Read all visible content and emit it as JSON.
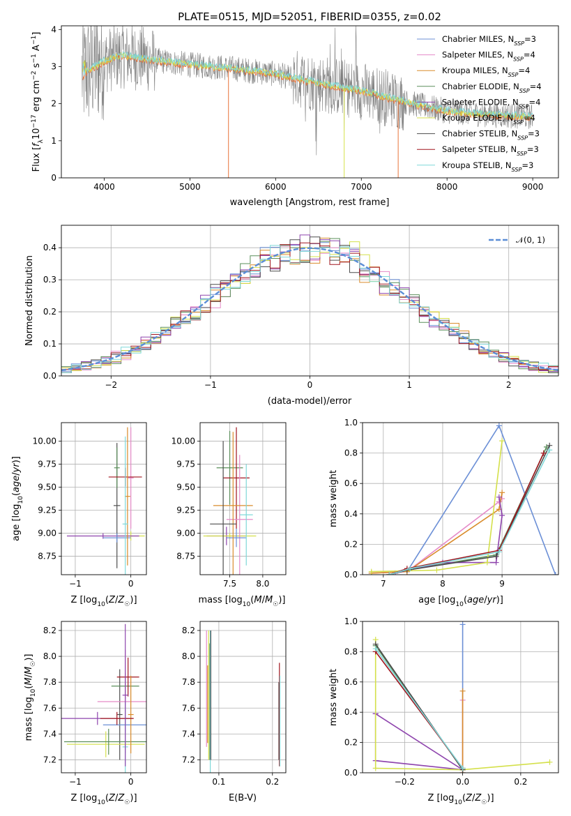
{
  "title": "PLATE=0515, MJD=52051, FIBERID=0355, z=0.02",
  "colors": {
    "data": "#808080",
    "models": [
      "#6b8fd6",
      "#e58ac8",
      "#d98b2b",
      "#5a8f5a",
      "#8e44ad",
      "#d4e04a",
      "#4d4d4d",
      "#a0151e",
      "#7fd8d8"
    ],
    "orange_model": "#e8733a",
    "normal": "#5b8ed6"
  },
  "legend": [
    {
      "name": "Chabrier MILES",
      "nssp": "3"
    },
    {
      "name": "Salpeter MILES",
      "nssp": "4"
    },
    {
      "name": "Kroupa MILES",
      "nssp": "4"
    },
    {
      "name": "Chabrier ELODIE",
      "nssp": "4"
    },
    {
      "name": "Salpeter ELODIE",
      "nssp": "4"
    },
    {
      "name": "Kroupa ELODIE",
      "nssp": "4"
    },
    {
      "name": "Chabrier STELIB",
      "nssp": "3"
    },
    {
      "name": "Salpeter STELIB",
      "nssp": "3"
    },
    {
      "name": "Kroupa STELIB",
      "nssp": "3"
    }
  ],
  "normal_label": "𝒩(0, 1)",
  "chart_data": [
    {
      "id": "spectrum",
      "type": "line",
      "xlabel": "wavelength [Angstrom, rest frame]",
      "ylabel": "Flux [f_λ10^-17 erg cm^-2 s^-1 A^-1]",
      "xlim": [
        3500,
        9300
      ],
      "ylim": [
        0,
        4.1
      ],
      "xticks": [
        4000,
        5000,
        6000,
        7000,
        8000,
        9000
      ],
      "yticks": [
        0,
        1,
        2,
        3,
        4
      ],
      "continuum_x": [
        3750,
        4000,
        4200,
        4500,
        5000,
        5500,
        6000,
        6500,
        7000,
        7500,
        8000,
        8500,
        9000
      ],
      "continuum_y": [
        2.8,
        3.15,
        3.3,
        3.2,
        3.05,
        2.95,
        2.8,
        2.55,
        2.35,
        2.05,
        1.8,
        1.7,
        1.65
      ],
      "grid": false
    },
    {
      "id": "residuals",
      "type": "line",
      "xlabel": "(data-model)/error",
      "ylabel": "Normed distribution",
      "xlim": [
        -2.5,
        2.5
      ],
      "ylim": [
        0,
        0.47
      ],
      "xticks": [
        -2,
        -1,
        0,
        1,
        2
      ],
      "yticks": [
        0.0,
        0.1,
        0.2,
        0.3,
        0.4
      ],
      "grid": true,
      "legend_position": "top-right"
    },
    {
      "id": "age_vs_Z",
      "type": "scatter",
      "xlabel": "Z [log10(Z/Z☉)]",
      "ylabel": "age  [log10(age/yr)]",
      "xlim": [
        -1.25,
        0.28
      ],
      "ylim": [
        8.55,
        10.2
      ],
      "xticks": [
        -1,
        0
      ],
      "yticks": [
        8.75,
        9.0,
        9.25,
        9.5,
        9.75,
        10.0
      ],
      "grid": true
    },
    {
      "id": "age_vs_mass",
      "type": "scatter",
      "xlabel": "mass [log10(M/M☉)]",
      "xlim": [
        7.05,
        8.35
      ],
      "ylim": [
        8.55,
        10.2
      ],
      "xticks": [
        7.5,
        8.0
      ],
      "yticks": [
        8.75,
        9.0,
        9.25,
        9.5,
        9.75,
        10.0
      ],
      "grid": true
    },
    {
      "id": "weight_vs_age",
      "type": "line",
      "xlabel": "age  [log10(age/yr)]",
      "ylabel": "mass weight",
      "xlim": [
        6.65,
        9.95
      ],
      "ylim": [
        0,
        1
      ],
      "xticks": [
        7,
        8,
        9
      ],
      "yticks": [
        0.0,
        0.2,
        0.4,
        0.6,
        0.8,
        1.0
      ],
      "grid": true,
      "series": [
        {
          "x": [
            7.4,
            8.95,
            9.9
          ],
          "y": [
            0.02,
            0.98,
            0.0
          ]
        },
        {
          "x": [
            6.8,
            7.4,
            8.95,
            9.0
          ],
          "y": [
            0.01,
            0.02,
            0.48,
            0.5
          ]
        },
        {
          "x": [
            6.8,
            7.4,
            8.95,
            9.0
          ],
          "y": [
            0.01,
            0.02,
            0.43,
            0.54
          ]
        },
        {
          "x": [
            7.1,
            7.4,
            8.9,
            9.75
          ],
          "y": [
            0.0,
            0.03,
            0.13,
            0.84
          ]
        },
        {
          "x": [
            7.2,
            8.0,
            8.9,
            9.0,
            8.95
          ],
          "y": [
            0.01,
            0.08,
            0.08,
            0.39,
            0.51
          ]
        },
        {
          "x": [
            6.8,
            7.9,
            8.75,
            9.0
          ],
          "y": [
            0.02,
            0.03,
            0.08,
            0.88
          ]
        },
        {
          "x": [
            7.1,
            7.4,
            8.9,
            9.8
          ],
          "y": [
            0.0,
            0.03,
            0.12,
            0.85
          ]
        },
        {
          "x": [
            7.1,
            7.4,
            8.95,
            9.7
          ],
          "y": [
            0.0,
            0.04,
            0.16,
            0.8
          ]
        },
        {
          "x": [
            7.1,
            7.45,
            8.95,
            9.8
          ],
          "y": [
            0.0,
            0.04,
            0.15,
            0.82
          ]
        }
      ]
    },
    {
      "id": "mass_vs_Z",
      "type": "scatter",
      "xlabel": "Z [log10(Z/Z☉)]",
      "ylabel": "mass [log10(M/M☉)]",
      "xlim": [
        -1.25,
        0.28
      ],
      "ylim": [
        7.1,
        8.27
      ],
      "xticks": [
        -1,
        0
      ],
      "yticks": [
        7.2,
        7.4,
        7.6,
        7.8,
        8.0,
        8.2
      ],
      "grid": true
    },
    {
      "id": "mass_vs_ebv",
      "type": "scatter",
      "xlabel": "E(B-V)",
      "xlim": [
        0.065,
        0.225
      ],
      "ylim": [
        7.1,
        8.27
      ],
      "xticks": [
        0.1,
        0.2
      ],
      "yticks": [
        7.2,
        7.4,
        7.6,
        7.8,
        8.0,
        8.2
      ],
      "grid": true
    },
    {
      "id": "weight_vs_Z",
      "type": "line",
      "xlabel": "Z [log10(Z/Z☉)]",
      "ylabel": "mass weight",
      "xlim": [
        -0.345,
        0.33
      ],
      "ylim": [
        0,
        1
      ],
      "xticks": [
        -0.2,
        0.0,
        0.2
      ],
      "yticks": [
        0.0,
        0.2,
        0.4,
        0.6,
        0.8,
        1.0
      ],
      "grid": true,
      "series": [
        {
          "x": [
            0.0,
            0.0,
            0.0
          ],
          "y": [
            0.0,
            0.98,
            0.02
          ]
        },
        {
          "x": [
            0.0,
            0.0,
            0.0
          ],
          "y": [
            0.0,
            0.48,
            0.02
          ]
        },
        {
          "x": [
            0.0,
            0.0,
            0.0
          ],
          "y": [
            0.0,
            0.54,
            0.02
          ]
        },
        {
          "x": [
            -0.3,
            0.0
          ],
          "y": [
            0.84,
            0.02
          ]
        },
        {
          "x": [
            -0.3,
            0.0,
            -0.3,
            -0.3
          ],
          "y": [
            0.39,
            0.02,
            0.08,
            0.39
          ]
        },
        {
          "x": [
            -0.3,
            -0.3,
            0.0,
            0.3
          ],
          "y": [
            0.88,
            0.03,
            0.02,
            0.07
          ]
        },
        {
          "x": [
            -0.3,
            0.0
          ],
          "y": [
            0.85,
            0.02
          ]
        },
        {
          "x": [
            -0.3,
            0.0
          ],
          "y": [
            0.8,
            0.03
          ]
        },
        {
          "x": [
            -0.3,
            0.0
          ],
          "y": [
            0.82,
            0.03
          ]
        }
      ]
    }
  ]
}
